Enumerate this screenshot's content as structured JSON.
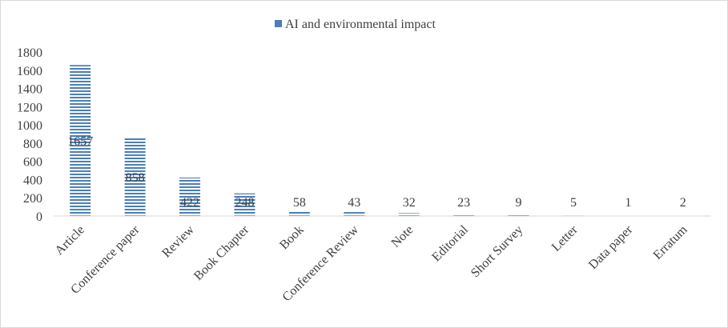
{
  "chart_data": {
    "type": "bar",
    "categories": [
      "Article",
      "Conference paper",
      "Review",
      "Book Chapter",
      "Book",
      "Conference Review",
      "Note",
      "Editorial",
      "Short Survey",
      "Letter",
      "Data paper",
      "Erratum"
    ],
    "series": [
      {
        "name": "AI and environmental impact",
        "values": [
          1657,
          858,
          422,
          248,
          58,
          43,
          32,
          23,
          9,
          5,
          1,
          2
        ]
      }
    ],
    "yticks": [
      0,
      200,
      400,
      600,
      800,
      1000,
      1200,
      1400,
      1600,
      1800
    ],
    "ylim": [
      0,
      1800
    ],
    "legend_position": "top",
    "grid": false,
    "colors": {
      "bar_stripe": "#4a7ebb",
      "bar_background": "#ffffff",
      "text": "#404040",
      "axis": "#d9d9d9"
    }
  }
}
